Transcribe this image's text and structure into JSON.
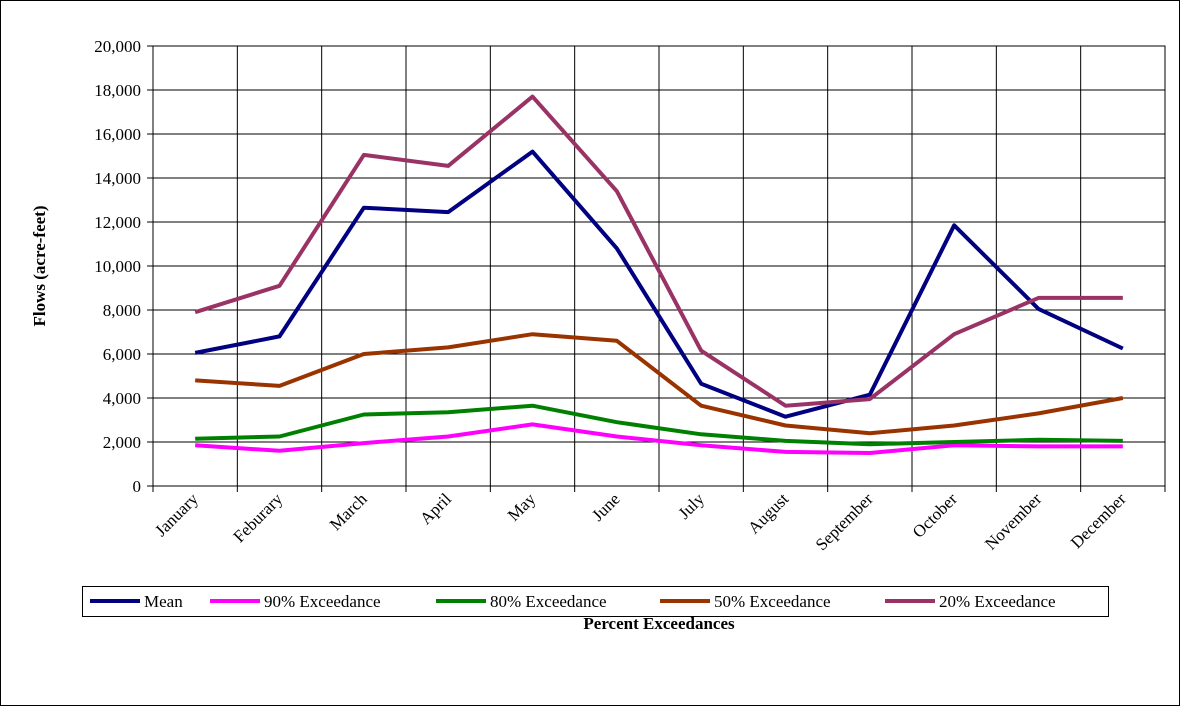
{
  "chart_data": {
    "type": "line",
    "xlabel": "Percent Exceedances",
    "ylabel": "Flows (acre-feet)",
    "categories": [
      "January",
      "Feburary",
      "March",
      "April",
      "May",
      "June",
      "July",
      "August",
      "September",
      "October",
      "November",
      "December"
    ],
    "series": [
      {
        "name": "Mean",
        "color": "#000080",
        "values": [
          6050,
          6800,
          12650,
          12450,
          15200,
          10800,
          4650,
          3150,
          4150,
          11850,
          8050,
          6250
        ]
      },
      {
        "name": "90% Exceedance",
        "color": "#ff00ff",
        "values": [
          1850,
          1600,
          1950,
          2250,
          2800,
          2250,
          1850,
          1550,
          1500,
          1850,
          1800,
          1800
        ]
      },
      {
        "name": "80% Exceedance",
        "color": "#008000",
        "values": [
          2150,
          2250,
          3250,
          3350,
          3650,
          2900,
          2350,
          2050,
          1900,
          2000,
          2100,
          2050
        ]
      },
      {
        "name": "50% Exceedance",
        "color": "#993300",
        "values": [
          4800,
          4550,
          6000,
          6300,
          6900,
          6600,
          3650,
          2750,
          2400,
          2750,
          3300,
          4000
        ]
      },
      {
        "name": "20% Exceedance",
        "color": "#993366",
        "values": [
          7900,
          9100,
          15050,
          14550,
          17700,
          13400,
          6150,
          3650,
          3950,
          6900,
          8550,
          8550
        ]
      }
    ],
    "ylim": [
      0,
      20000
    ],
    "yticks": [
      0,
      {
        "value": 2000,
        "label": "2,000"
      },
      {
        "value": 4000,
        "label": "4,000"
      },
      {
        "value": 6000,
        "label": "6,000"
      },
      {
        "value": 8000,
        "label": "8,000"
      },
      {
        "value": 10000,
        "label": "10,000"
      },
      {
        "value": 12000,
        "label": "12,000"
      },
      {
        "value": 14000,
        "label": "14,000"
      },
      {
        "value": 16000,
        "label": "16,000"
      },
      {
        "value": 18000,
        "label": "18,000"
      },
      {
        "value": 20000,
        "label": "20,000"
      }
    ],
    "grid": true,
    "legend": "bottom"
  }
}
